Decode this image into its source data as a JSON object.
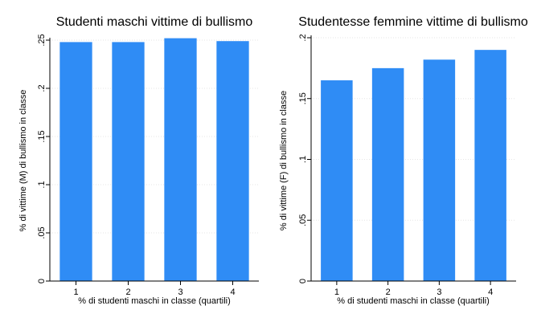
{
  "colors": {
    "bar": "#2f8cf5",
    "plot_bg": "#ffffff"
  },
  "chart_data": [
    {
      "type": "bar",
      "title": "Studenti maschi vittime di bullismo",
      "xlabel": "% di studenti maschi in classe (quartili)",
      "ylabel": "% di vittime (M) di bullismo in classe",
      "categories": [
        "1",
        "2",
        "3",
        "4"
      ],
      "values": [
        0.248,
        0.248,
        0.252,
        0.249
      ],
      "ylim": [
        0,
        0.25
      ],
      "yticks": [
        0,
        0.05,
        0.1,
        0.15,
        0.2,
        0.25
      ],
      "ytick_labels": [
        "0",
        ".05",
        ".1",
        ".15",
        ".2",
        ".25"
      ],
      "grid": true,
      "legend": "none"
    },
    {
      "type": "bar",
      "title": "Studentesse femmine vittime di bullismo",
      "xlabel": "% di studenti maschi in classe (quartili)",
      "ylabel": "% di vittime (F) di bullismo in classe",
      "categories": [
        "1",
        "2",
        "3",
        "4"
      ],
      "values": [
        0.165,
        0.175,
        0.182,
        0.19
      ],
      "ylim": [
        0,
        0.2
      ],
      "yticks": [
        0,
        0.05,
        0.1,
        0.15,
        0.2
      ],
      "ytick_labels": [
        "0",
        ".05",
        ".1",
        ".15",
        ".2"
      ],
      "grid": true,
      "legend": "none"
    }
  ]
}
